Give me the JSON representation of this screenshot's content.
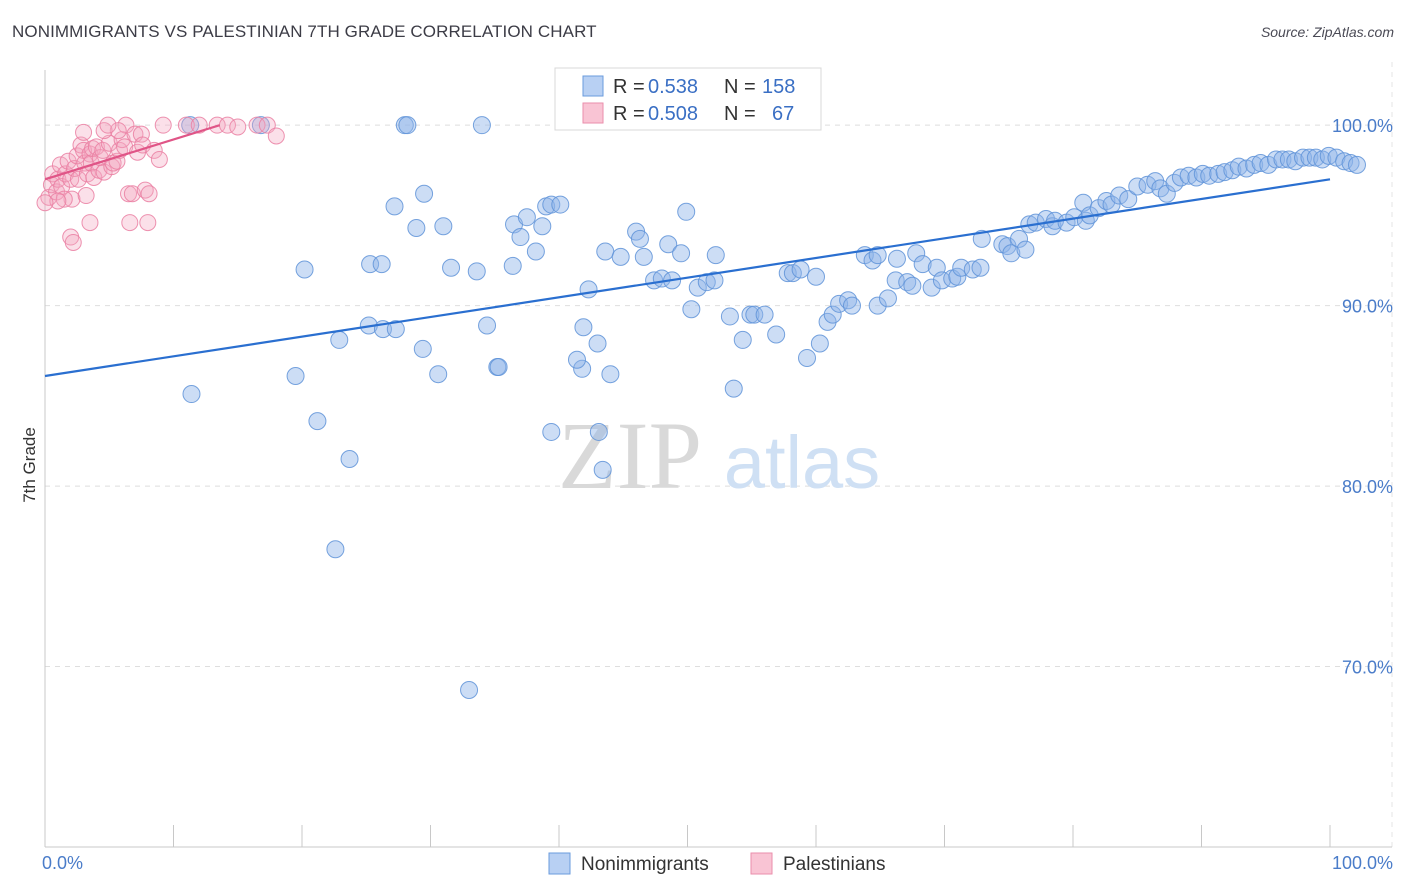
{
  "chart_data": {
    "type": "scatter",
    "title": "NONIMMIGRANTS VS PALESTINIAN 7TH GRADE CORRELATION CHART",
    "source": "Source: ZipAtlas.com",
    "xlabel": "",
    "ylabel": "7th Grade",
    "xlim": [
      0,
      100
    ],
    "ylim": [
      60,
      103.5
    ],
    "x_tick_labels": [
      {
        "value": 0,
        "label": "0.0%"
      },
      {
        "value": 100,
        "label": "100.0%"
      }
    ],
    "y_tick_labels": [
      {
        "value": 100,
        "label": "100.0%"
      },
      {
        "value": 90,
        "label": "90.0%"
      },
      {
        "value": 80,
        "label": "80.0%"
      },
      {
        "value": 70,
        "label": "70.0%"
      }
    ],
    "watermark": {
      "zip": "ZIP",
      "atlas": "atlas"
    },
    "legend_top": [
      {
        "series": "Nonimmigrants",
        "r_label": "R =",
        "r_value": "0.538",
        "n_label": "N =",
        "n_value": "158"
      },
      {
        "series": "Palestinians",
        "r_label": "R =",
        "r_value": "0.508",
        "n_label": "N =",
        "n_value": "67"
      }
    ],
    "series": [
      {
        "name": "Nonimmigrants",
        "color": "#8db4e8",
        "stroke": "#5f93d8",
        "line_color": "#2a6fd0",
        "trend": [
          [
            0,
            86.1
          ],
          [
            100,
            97.0
          ]
        ],
        "points": [
          [
            11.3,
            100
          ],
          [
            16.8,
            100
          ],
          [
            28.0,
            100
          ],
          [
            34.0,
            100
          ],
          [
            28.2,
            100
          ],
          [
            11.4,
            85.1
          ],
          [
            19.5,
            86.1
          ],
          [
            21.2,
            83.6
          ],
          [
            23.7,
            81.5
          ],
          [
            22.6,
            76.5
          ],
          [
            33.0,
            68.7
          ],
          [
            20.2,
            92.0
          ],
          [
            25.3,
            92.3
          ],
          [
            26.2,
            92.3
          ],
          [
            28.9,
            94.3
          ],
          [
            27.2,
            95.5
          ],
          [
            29.5,
            96.2
          ],
          [
            31.0,
            94.4
          ],
          [
            31.6,
            92.1
          ],
          [
            33.6,
            91.9
          ],
          [
            22.9,
            88.1
          ],
          [
            25.2,
            88.9
          ],
          [
            26.3,
            88.7
          ],
          [
            27.3,
            88.7
          ],
          [
            29.4,
            87.6
          ],
          [
            30.6,
            86.2
          ],
          [
            34.4,
            88.9
          ],
          [
            35.2,
            86.6
          ],
          [
            35.3,
            86.6
          ],
          [
            36.4,
            92.2
          ],
          [
            36.5,
            94.5
          ],
          [
            37.0,
            93.8
          ],
          [
            37.5,
            94.9
          ],
          [
            38.2,
            93.0
          ],
          [
            38.7,
            94.4
          ],
          [
            39.0,
            95.5
          ],
          [
            39.4,
            95.6
          ],
          [
            40.1,
            95.6
          ],
          [
            39.4,
            83.0
          ],
          [
            41.8,
            86.5
          ],
          [
            41.4,
            87.0
          ],
          [
            41.9,
            88.8
          ],
          [
            43.1,
            83.0
          ],
          [
            43.4,
            80.9
          ],
          [
            43.0,
            87.9
          ],
          [
            42.3,
            90.9
          ],
          [
            43.6,
            93.0
          ],
          [
            44.0,
            86.2
          ],
          [
            44.8,
            92.7
          ],
          [
            46.0,
            94.1
          ],
          [
            46.3,
            93.7
          ],
          [
            46.6,
            92.7
          ],
          [
            47.4,
            91.4
          ],
          [
            48.0,
            91.5
          ],
          [
            48.5,
            93.4
          ],
          [
            48.8,
            91.4
          ],
          [
            49.5,
            92.9
          ],
          [
            49.9,
            95.2
          ],
          [
            50.3,
            89.8
          ],
          [
            50.8,
            91.0
          ],
          [
            51.5,
            91.3
          ],
          [
            52.1,
            91.4
          ],
          [
            52.2,
            92.8
          ],
          [
            53.3,
            89.4
          ],
          [
            53.6,
            85.4
          ],
          [
            54.3,
            88.1
          ],
          [
            54.9,
            89.5
          ],
          [
            55.2,
            89.5
          ],
          [
            56.0,
            89.5
          ],
          [
            56.9,
            88.4
          ],
          [
            57.8,
            91.8
          ],
          [
            58.2,
            91.8
          ],
          [
            58.8,
            92.0
          ],
          [
            59.3,
            87.1
          ],
          [
            60.0,
            91.6
          ],
          [
            60.3,
            87.9
          ],
          [
            60.9,
            89.1
          ],
          [
            61.3,
            89.5
          ],
          [
            61.8,
            90.1
          ],
          [
            62.5,
            90.3
          ],
          [
            62.8,
            90.0
          ],
          [
            63.8,
            92.8
          ],
          [
            64.4,
            92.5
          ],
          [
            64.8,
            92.8
          ],
          [
            64.8,
            90.0
          ],
          [
            65.6,
            90.4
          ],
          [
            66.2,
            91.4
          ],
          [
            66.3,
            92.6
          ],
          [
            67.1,
            91.3
          ],
          [
            67.5,
            91.1
          ],
          [
            67.8,
            92.9
          ],
          [
            68.3,
            92.3
          ],
          [
            69.0,
            91.0
          ],
          [
            69.4,
            92.1
          ],
          [
            69.8,
            91.4
          ],
          [
            70.6,
            91.5
          ],
          [
            71.0,
            91.6
          ],
          [
            71.3,
            92.1
          ],
          [
            72.2,
            92.0
          ],
          [
            72.8,
            92.1
          ],
          [
            72.9,
            93.7
          ],
          [
            74.5,
            93.4
          ],
          [
            74.9,
            93.3
          ],
          [
            75.2,
            92.9
          ],
          [
            75.8,
            93.7
          ],
          [
            76.3,
            93.1
          ],
          [
            76.6,
            94.5
          ],
          [
            77.1,
            94.6
          ],
          [
            77.9,
            94.8
          ],
          [
            78.4,
            94.4
          ],
          [
            78.6,
            94.7
          ],
          [
            79.5,
            94.6
          ],
          [
            80.1,
            94.9
          ],
          [
            80.8,
            95.7
          ],
          [
            81.0,
            94.7
          ],
          [
            81.3,
            95.0
          ],
          [
            82.0,
            95.4
          ],
          [
            82.6,
            95.8
          ],
          [
            83.0,
            95.6
          ],
          [
            83.6,
            96.1
          ],
          [
            84.3,
            95.9
          ],
          [
            85.0,
            96.6
          ],
          [
            85.8,
            96.7
          ],
          [
            86.4,
            96.9
          ],
          [
            86.8,
            96.5
          ],
          [
            87.3,
            96.2
          ],
          [
            87.9,
            96.8
          ],
          [
            88.4,
            97.1
          ],
          [
            89.0,
            97.2
          ],
          [
            89.6,
            97.1
          ],
          [
            90.1,
            97.3
          ],
          [
            90.6,
            97.2
          ],
          [
            91.3,
            97.3
          ],
          [
            91.8,
            97.4
          ],
          [
            92.4,
            97.5
          ],
          [
            92.9,
            97.7
          ],
          [
            93.5,
            97.6
          ],
          [
            94.1,
            97.8
          ],
          [
            94.6,
            97.9
          ],
          [
            95.2,
            97.8
          ],
          [
            95.8,
            98.1
          ],
          [
            96.3,
            98.1
          ],
          [
            96.8,
            98.1
          ],
          [
            97.3,
            98.0
          ],
          [
            97.9,
            98.2
          ],
          [
            98.4,
            98.2
          ],
          [
            98.9,
            98.2
          ],
          [
            99.4,
            98.1
          ],
          [
            99.9,
            98.3
          ],
          [
            100.5,
            98.2
          ],
          [
            101.1,
            98.0
          ],
          [
            101.6,
            97.9
          ],
          [
            102.1,
            97.8
          ]
        ]
      },
      {
        "name": "Palestinians",
        "color": "#f4a6bf",
        "stroke": "#ea7fa2",
        "line_color": "#e05587",
        "trend": [
          [
            0,
            97.0
          ],
          [
            13.6,
            100.0
          ]
        ],
        "points": [
          [
            0.3,
            96.0
          ],
          [
            0.5,
            96.7
          ],
          [
            0.6,
            97.3
          ],
          [
            0.9,
            96.3
          ],
          [
            1.0,
            97.0
          ],
          [
            1.2,
            97.8
          ],
          [
            1.3,
            96.6
          ],
          [
            1.6,
            97.3
          ],
          [
            1.8,
            98.0
          ],
          [
            2.0,
            97.0
          ],
          [
            2.1,
            95.9
          ],
          [
            2.3,
            97.6
          ],
          [
            2.5,
            98.3
          ],
          [
            2.6,
            97.0
          ],
          [
            2.8,
            98.9
          ],
          [
            3.0,
            98.6
          ],
          [
            3.1,
            97.9
          ],
          [
            3.2,
            96.1
          ],
          [
            3.3,
            97.3
          ],
          [
            3.5,
            98.4
          ],
          [
            3.6,
            97.9
          ],
          [
            3.7,
            98.7
          ],
          [
            3.8,
            97.1
          ],
          [
            4.0,
            98.8
          ],
          [
            4.2,
            97.5
          ],
          [
            4.3,
            98.2
          ],
          [
            4.5,
            98.6
          ],
          [
            4.6,
            97.4
          ],
          [
            5.0,
            99.0
          ],
          [
            5.2,
            97.7
          ],
          [
            5.3,
            97.9
          ],
          [
            5.6,
            98.0
          ],
          [
            5.8,
            98.6
          ],
          [
            6.0,
            99.2
          ],
          [
            6.2,
            98.8
          ],
          [
            6.3,
            100
          ],
          [
            6.5,
            96.2
          ],
          [
            6.6,
            94.6
          ],
          [
            6.8,
            96.2
          ],
          [
            7.0,
            99.5
          ],
          [
            7.2,
            98.5
          ],
          [
            7.5,
            99.5
          ],
          [
            7.6,
            98.9
          ],
          [
            7.8,
            96.4
          ],
          [
            8.0,
            94.6
          ],
          [
            8.1,
            96.2
          ],
          [
            8.5,
            98.6
          ],
          [
            2.0,
            93.8
          ],
          [
            2.2,
            93.5
          ],
          [
            3.5,
            94.6
          ],
          [
            1.5,
            95.9
          ],
          [
            1.0,
            95.8
          ],
          [
            3.0,
            99.6
          ],
          [
            5.7,
            99.7
          ],
          [
            9.2,
            100
          ],
          [
            8.9,
            98.1
          ],
          [
            11.0,
            100
          ],
          [
            12.0,
            100
          ],
          [
            13.4,
            100
          ],
          [
            14.2,
            100
          ],
          [
            15.0,
            99.9
          ],
          [
            16.5,
            100
          ],
          [
            17.3,
            100
          ],
          [
            18.0,
            99.4
          ],
          [
            4.6,
            99.7
          ],
          [
            4.9,
            100
          ],
          [
            0.0,
            95.7
          ]
        ]
      }
    ],
    "legend_bottom": [
      "Nonimmigrants",
      "Palestinians"
    ]
  }
}
